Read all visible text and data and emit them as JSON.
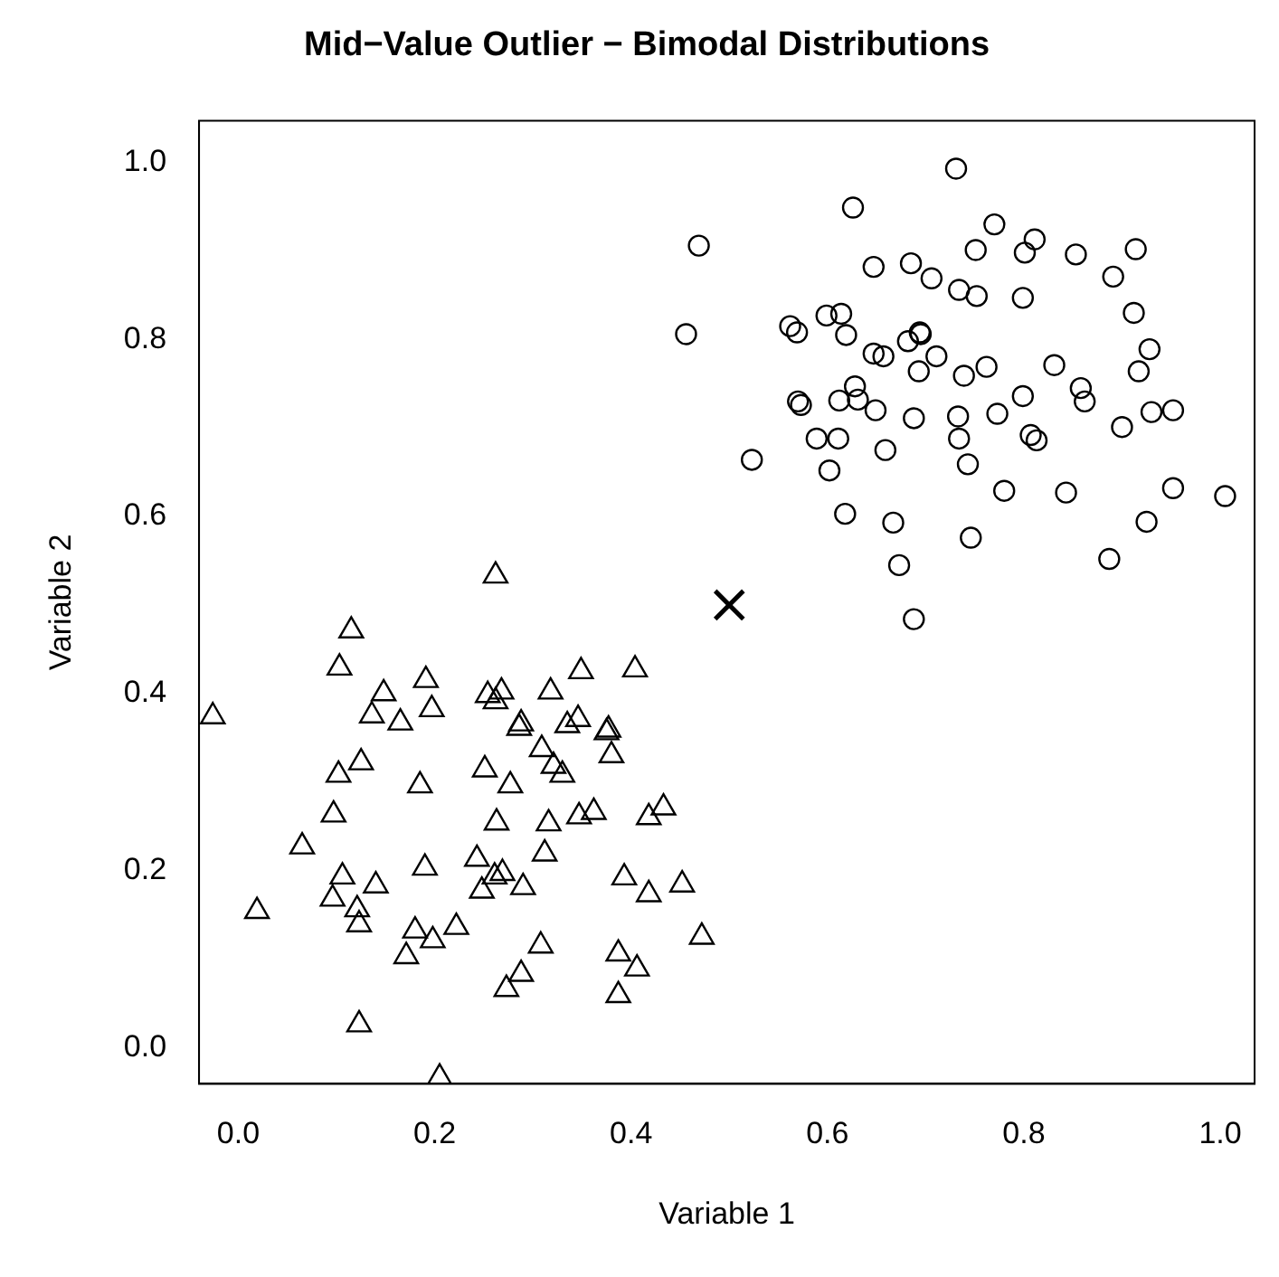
{
  "chart_data": {
    "type": "scatter",
    "title": "Mid−Value Outlier − Bimodal Distributions",
    "xlabel": "Variable 1",
    "ylabel": "Variable 2",
    "xlim": [
      -0.04,
      1.035
    ],
    "ylim": [
      -0.041,
      1.047
    ],
    "xticks": [
      {
        "value": 0,
        "label": "0.0"
      },
      {
        "value": 0.2,
        "label": "0.2"
      },
      {
        "value": 0.4,
        "label": "0.4"
      },
      {
        "value": 0.6,
        "label": "0.6"
      },
      {
        "value": 0.8,
        "label": "0.8"
      },
      {
        "value": 1,
        "label": "1.0"
      }
    ],
    "yticks": [
      {
        "value": 0,
        "label": "0.0"
      },
      {
        "value": 0.2,
        "label": "0.2"
      },
      {
        "value": 0.4,
        "label": "0.4"
      },
      {
        "value": 0.6,
        "label": "0.6"
      },
      {
        "value": 0.8,
        "label": "0.8"
      },
      {
        "value": 1,
        "label": "1.0"
      }
    ],
    "grid": false,
    "legend": false,
    "series": [
      {
        "color": "#000000",
        "marker": "triangle",
        "x": [
          0.262,
          0.115,
          0.103,
          0.191,
          0.148,
          0.254,
          0.268,
          0.262,
          -0.026,
          0.136,
          0.197,
          0.165,
          0.288,
          0.286,
          0.125,
          0.102,
          0.251,
          0.185,
          0.277,
          0.097,
          0.263,
          0.065,
          0.19,
          0.243,
          0.106,
          0.14,
          0.261,
          0.269,
          0.248,
          0.096,
          0.019,
          0.121,
          0.123,
          0.18,
          0.198,
          0.222,
          0.171,
          0.123,
          0.205,
          0.273,
          0.349,
          0.404,
          0.318,
          0.335,
          0.346,
          0.375,
          0.377,
          0.309,
          0.38,
          0.321,
          0.33,
          0.316,
          0.347,
          0.362,
          0.418,
          0.433,
          0.312,
          0.29,
          0.393,
          0.418,
          0.452,
          0.308,
          0.387,
          0.406,
          0.472,
          0.288,
          0.387
        ],
        "values": [
          0.533,
          0.471,
          0.429,
          0.415,
          0.4,
          0.398,
          0.402,
          0.391,
          0.374,
          0.375,
          0.382,
          0.367,
          0.366,
          0.361,
          0.322,
          0.308,
          0.314,
          0.296,
          0.296,
          0.263,
          0.254,
          0.227,
          0.203,
          0.213,
          0.193,
          0.183,
          0.193,
          0.197,
          0.177,
          0.168,
          0.154,
          0.156,
          0.139,
          0.132,
          0.121,
          0.136,
          0.103,
          0.026,
          -0.034,
          0.066,
          0.425,
          0.427,
          0.402,
          0.364,
          0.371,
          0.356,
          0.359,
          0.337,
          0.33,
          0.318,
          0.308,
          0.253,
          0.261,
          0.266,
          0.26,
          0.271,
          0.219,
          0.181,
          0.192,
          0.173,
          0.184,
          0.115,
          0.106,
          0.089,
          0.125,
          0.083,
          0.059
        ]
      },
      {
        "color": "#000000",
        "marker": "circle",
        "x": [
          0.626,
          0.469,
          0.647,
          0.685,
          0.706,
          0.456,
          0.562,
          0.569,
          0.599,
          0.614,
          0.619,
          0.647,
          0.657,
          0.682,
          0.694,
          0.695,
          0.711,
          0.693,
          0.628,
          0.57,
          0.573,
          0.612,
          0.631,
          0.649,
          0.688,
          0.589,
          0.611,
          0.659,
          0.523,
          0.602,
          0.618,
          0.667,
          0.673,
          0.688,
          0.731,
          0.77,
          0.751,
          0.801,
          0.811,
          0.853,
          0.914,
          0.891,
          0.734,
          0.752,
          0.799,
          0.912,
          0.928,
          0.917,
          0.739,
          0.762,
          0.831,
          0.799,
          0.858,
          0.862,
          0.93,
          0.952,
          0.9,
          0.733,
          0.773,
          0.734,
          0.807,
          0.813,
          0.743,
          0.78,
          0.843,
          0.952,
          1.005,
          0.925,
          0.746,
          0.887
        ],
        "values": [
          0.949,
          0.906,
          0.882,
          0.886,
          0.869,
          0.806,
          0.815,
          0.808,
          0.827,
          0.829,
          0.805,
          0.784,
          0.781,
          0.798,
          0.808,
          0.806,
          0.781,
          0.764,
          0.747,
          0.73,
          0.726,
          0.731,
          0.732,
          0.72,
          0.711,
          0.688,
          0.688,
          0.675,
          0.664,
          0.652,
          0.603,
          0.593,
          0.545,
          0.484,
          0.993,
          0.93,
          0.901,
          0.898,
          0.913,
          0.896,
          0.902,
          0.871,
          0.856,
          0.849,
          0.847,
          0.83,
          0.789,
          0.764,
          0.759,
          0.769,
          0.771,
          0.736,
          0.745,
          0.73,
          0.718,
          0.72,
          0.701,
          0.713,
          0.716,
          0.688,
          0.692,
          0.686,
          0.659,
          0.629,
          0.627,
          0.632,
          0.623,
          0.594,
          0.576,
          0.552
        ]
      },
      {
        "color": "#000000",
        "marker": "cross",
        "x": [
          0.5
        ],
        "values": [
          0.5
        ]
      }
    ]
  }
}
